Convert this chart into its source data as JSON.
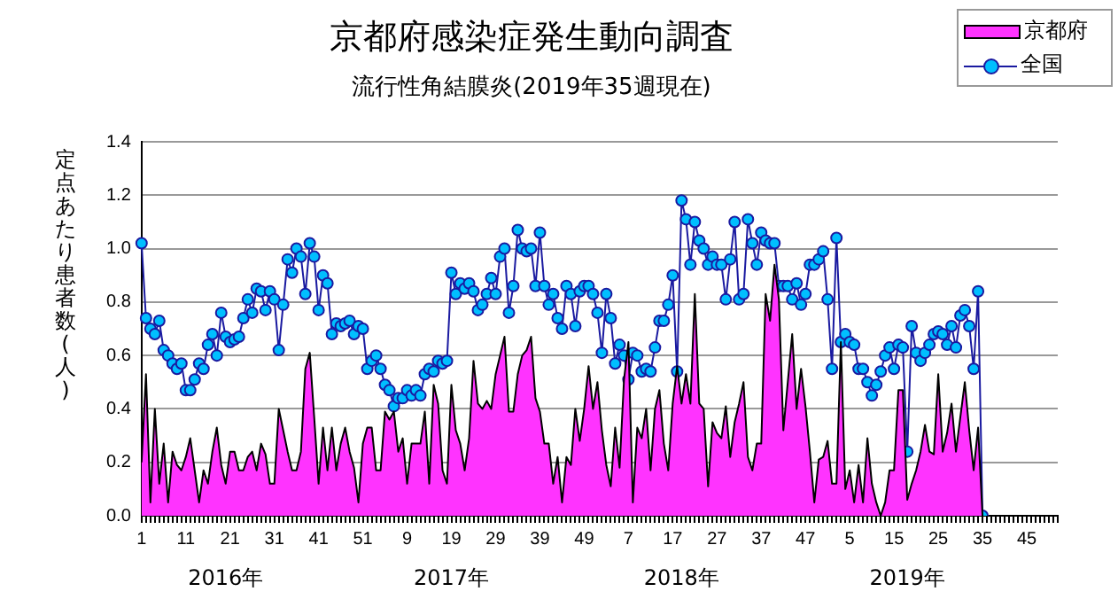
{
  "chart_data": {
    "type": "line",
    "title": "京都府感染症発生動向調査",
    "subtitle": "流行性角結膜炎(2019年35週現在)",
    "ylabel": "定点あたり患者数(人)",
    "categories": [
      "1",
      null,
      null,
      null,
      null,
      null,
      null,
      null,
      null,
      null,
      "11",
      null,
      null,
      null,
      null,
      null,
      null,
      null,
      null,
      null,
      "21",
      null,
      null,
      null,
      null,
      null,
      null,
      null,
      null,
      null,
      "31",
      null,
      null,
      null,
      null,
      null,
      null,
      null,
      null,
      null,
      "41",
      null,
      null,
      null,
      null,
      null,
      null,
      null,
      null,
      null,
      "51",
      null,
      null,
      null,
      null,
      null,
      null,
      null,
      null,
      null,
      "9",
      null,
      null,
      null,
      null,
      null,
      null,
      null,
      null,
      null,
      "19",
      null,
      null,
      null,
      null,
      null,
      null,
      null,
      null,
      null,
      "29",
      null,
      null,
      null,
      null,
      null,
      null,
      null,
      null,
      null,
      "39",
      null,
      null,
      null,
      null,
      null,
      null,
      null,
      null,
      null,
      "49",
      null,
      null,
      null,
      null,
      null,
      null,
      null,
      null,
      null,
      "7",
      null,
      null,
      null,
      null,
      null,
      null,
      null,
      null,
      null,
      "17",
      null,
      null,
      null,
      null,
      null,
      null,
      null,
      null,
      null,
      "27",
      null,
      null,
      null,
      null,
      null,
      null,
      null,
      null,
      null,
      "37",
      null,
      null,
      null,
      null,
      null,
      null,
      null,
      null,
      null,
      "47",
      null,
      null,
      null,
      null,
      null,
      null,
      null,
      null,
      null,
      "5",
      null,
      null,
      null,
      null,
      null,
      null,
      null,
      null,
      null,
      "15",
      null,
      null,
      null,
      null,
      null,
      null,
      null,
      null,
      null,
      "25",
      null,
      null,
      null,
      null,
      null,
      null,
      null,
      null,
      null,
      "35",
      null,
      null,
      null,
      null,
      null,
      null,
      null,
      null,
      null,
      "45",
      null,
      null,
      null,
      null,
      null,
      null,
      null
    ],
    "series": [
      {
        "name": "京都府",
        "type": "area",
        "color": "#ff33ff",
        "values": [
          0.2,
          0.53,
          0.05,
          0.4,
          0.12,
          0.27,
          0.05,
          0.24,
          0.19,
          0.17,
          0.22,
          0.29,
          0.17,
          0.05,
          0.17,
          0.12,
          0.24,
          0.33,
          0.19,
          0.12,
          0.24,
          0.24,
          0.17,
          0.17,
          0.22,
          0.24,
          0.17,
          0.27,
          0.23,
          0.12,
          0.12,
          0.4,
          0.32,
          0.24,
          0.17,
          0.17,
          0.24,
          0.55,
          0.61,
          0.37,
          0.12,
          0.33,
          0.17,
          0.33,
          0.17,
          0.27,
          0.33,
          0.24,
          0.18,
          0.05,
          0.27,
          0.33,
          0.33,
          0.17,
          0.17,
          0.39,
          0.36,
          0.39,
          0.24,
          0.29,
          0.12,
          0.27,
          0.27,
          0.27,
          0.39,
          0.12,
          0.49,
          0.42,
          0.17,
          0.12,
          0.49,
          0.32,
          0.27,
          0.17,
          0.29,
          0.58,
          0.42,
          0.4,
          0.43,
          0.4,
          0.53,
          0.6,
          0.67,
          0.39,
          0.39,
          0.53,
          0.6,
          0.62,
          0.67,
          0.44,
          0.39,
          0.27,
          0.27,
          0.12,
          0.22,
          0.05,
          0.22,
          0.19,
          0.4,
          0.28,
          0.4,
          0.56,
          0.4,
          0.5,
          0.32,
          0.19,
          0.11,
          0.33,
          0.18,
          0.51,
          0.65,
          0.05,
          0.33,
          0.29,
          0.4,
          0.17,
          0.4,
          0.47,
          0.27,
          0.17,
          0.42,
          0.56,
          0.42,
          0.53,
          0.42,
          0.83,
          0.42,
          0.4,
          0.11,
          0.35,
          0.31,
          0.29,
          0.41,
          0.22,
          0.35,
          0.42,
          0.5,
          0.22,
          0.17,
          0.27,
          0.27,
          0.83,
          0.73,
          0.94,
          0.81,
          0.32,
          0.5,
          0.68,
          0.4,
          0.55,
          0.41,
          0.24,
          0.05,
          0.21,
          0.22,
          0.28,
          0.12,
          0.12,
          0.65,
          0.1,
          0.17,
          0.05,
          0.19,
          0.05,
          0.29,
          0.12,
          0.05,
          0,
          0.05,
          0.17,
          0.17,
          0.47,
          0.47,
          0.06,
          0.12,
          0.17,
          0.24,
          0.34,
          0.24,
          0.23,
          0.53,
          0.24,
          0.31,
          0.42,
          0.24,
          0.37,
          0.5,
          0.32,
          0.17,
          0.33,
          0,
          null,
          null,
          null,
          null,
          null,
          null,
          null,
          null,
          null,
          null,
          null,
          null,
          null,
          null,
          null,
          null,
          null
        ]
      },
      {
        "name": "全国",
        "color": "#00bfff",
        "marker": "circle",
        "values": [
          1.02,
          0.74,
          0.7,
          0.68,
          0.73,
          0.62,
          0.6,
          0.57,
          0.55,
          0.57,
          0.47,
          0.47,
          0.51,
          0.57,
          0.55,
          0.64,
          0.68,
          0.6,
          0.76,
          0.67,
          0.65,
          0.66,
          0.67,
          0.74,
          0.81,
          0.76,
          0.85,
          0.84,
          0.77,
          0.84,
          0.81,
          0.62,
          0.79,
          0.96,
          0.91,
          1.0,
          0.97,
          0.83,
          1.02,
          0.97,
          0.77,
          0.9,
          0.87,
          0.68,
          0.72,
          0.71,
          0.72,
          0.73,
          0.68,
          0.71,
          0.7,
          0.55,
          0.58,
          0.6,
          0.55,
          0.49,
          0.47,
          0.41,
          0.44,
          0.44,
          0.47,
          0.45,
          0.47,
          0.45,
          0.53,
          0.55,
          0.54,
          0.58,
          0.57,
          0.58,
          0.91,
          0.83,
          0.87,
          0.85,
          0.87,
          0.84,
          0.77,
          0.79,
          0.83,
          0.89,
          0.83,
          0.97,
          1.0,
          0.76,
          0.86,
          1.07,
          1.0,
          0.99,
          1.0,
          0.86,
          1.06,
          0.86,
          0.79,
          0.83,
          0.74,
          0.7,
          0.86,
          0.83,
          0.71,
          0.84,
          0.86,
          0.86,
          0.83,
          0.76,
          0.61,
          0.83,
          0.74,
          0.57,
          0.64,
          0.6,
          0.51,
          0.61,
          0.6,
          0.54,
          0.55,
          0.54,
          0.63,
          0.73,
          0.73,
          0.79,
          0.9,
          0.54,
          1.18,
          1.11,
          0.94,
          1.1,
          1.03,
          1.0,
          0.94,
          0.97,
          0.94,
          0.94,
          0.81,
          0.96,
          1.1,
          0.81,
          0.83,
          1.11,
          1.02,
          0.94,
          1.06,
          1.03,
          1.02,
          1.02,
          0.86,
          0.86,
          0.86,
          0.81,
          0.87,
          0.79,
          0.83,
          0.94,
          0.94,
          0.96,
          0.99,
          0.81,
          0.55,
          1.04,
          0.65,
          0.68,
          0.65,
          0.64,
          0.55,
          0.55,
          0.5,
          0.45,
          0.49,
          0.54,
          0.6,
          0.63,
          0.55,
          0.64,
          0.63,
          0.24,
          0.71,
          0.61,
          0.58,
          0.61,
          0.64,
          0.68,
          0.69,
          0.68,
          0.64,
          0.71,
          0.63,
          0.75,
          0.77,
          0.71,
          0.55,
          0.84,
          0,
          null,
          null,
          null,
          null,
          null,
          null,
          null,
          null,
          null,
          null,
          null,
          null,
          null,
          null,
          null,
          null,
          null
        ]
      }
    ],
    "ylim": [
      0,
      1.4
    ],
    "yticks": [
      {
        "value": 0,
        "label": "0.0"
      },
      {
        "value": 0.2,
        "label": "0.2"
      },
      {
        "value": 0.4,
        "label": "0.4"
      },
      {
        "value": 0.6,
        "label": "0.6"
      },
      {
        "value": 0.8,
        "label": "0.8"
      },
      {
        "value": 1.0,
        "label": "1.0"
      },
      {
        "value": 1.2,
        "label": "1.2"
      },
      {
        "value": 1.4,
        "label": "1.4"
      }
    ],
    "annotations": [
      "2016年",
      "2017年",
      "2018年",
      "2019年"
    ],
    "grid": "y",
    "legend": "top right"
  }
}
